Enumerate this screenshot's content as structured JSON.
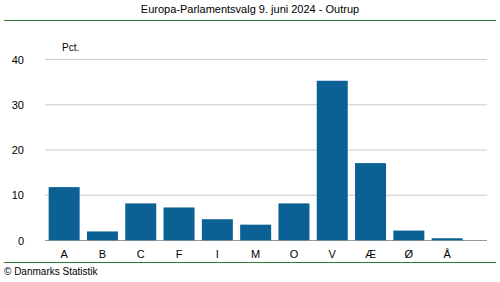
{
  "chart_data": {
    "type": "bar",
    "title": "Europa-Parlamentsvalg 9. juni 2024 - Outrup",
    "ylabel": "Pct.",
    "annotations": [
      "© Danmarks Statistik"
    ],
    "categories": [
      "A",
      "B",
      "C",
      "F",
      "I",
      "M",
      "O",
      "V",
      "Æ",
      "Ø",
      "Å"
    ],
    "values": [
      11.8,
      2.0,
      8.2,
      7.3,
      4.7,
      3.5,
      8.2,
      35.3,
      17.1,
      2.2,
      0.5
    ],
    "color": "#0b6193",
    "ylim": [
      0,
      40
    ],
    "yticks": [
      0,
      10,
      20,
      30,
      40
    ],
    "grid": true
  }
}
